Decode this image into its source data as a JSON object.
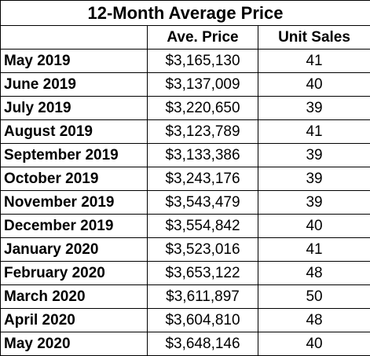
{
  "table": {
    "title": "12-Month Average Price",
    "headers": [
      "",
      "Ave. Price",
      "Unit Sales"
    ],
    "rows": [
      {
        "month": "May 2019",
        "price": "$3,165,130",
        "sales": "41"
      },
      {
        "month": "June 2019",
        "price": "$3,137,009",
        "sales": "40"
      },
      {
        "month": "July 2019",
        "price": "$3,220,650",
        "sales": "39"
      },
      {
        "month": "August 2019",
        "price": "$3,123,789",
        "sales": "41"
      },
      {
        "month": "September 2019",
        "price": "$3,133,386",
        "sales": "39"
      },
      {
        "month": "October 2019",
        "price": "$3,243,176",
        "sales": "39"
      },
      {
        "month": "November 2019",
        "price": "$3,543,479",
        "sales": "39"
      },
      {
        "month": "December 2019",
        "price": "$3,554,842",
        "sales": "40"
      },
      {
        "month": "January 2020",
        "price": "$3,523,016",
        "sales": "41"
      },
      {
        "month": "February 2020",
        "price": "$3,653,122",
        "sales": "48"
      },
      {
        "month": "March 2020",
        "price": "$3,611,897",
        "sales": "50"
      },
      {
        "month": "April 2020",
        "price": "$3,604,810",
        "sales": "48"
      },
      {
        "month": "May 2020",
        "price": "$3,648,146",
        "sales": "40"
      }
    ]
  }
}
